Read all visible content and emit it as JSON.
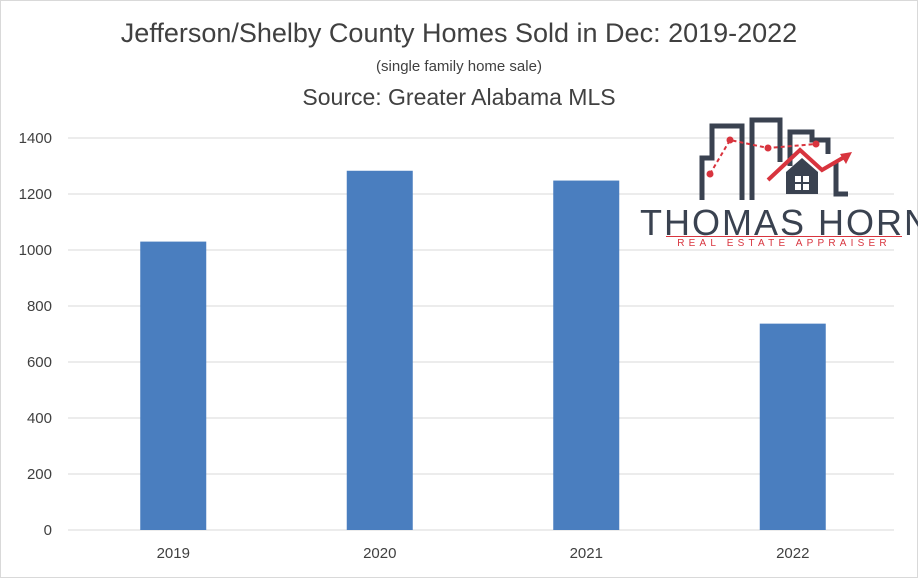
{
  "title": "Jefferson/Shelby County Homes Sold in Dec: 2019-2022",
  "subtitle": "(single family home sale)",
  "source": "Source: Greater Alabama MLS",
  "logo": {
    "name": "THOMAS HORN",
    "tagline": "REAL ESTATE APPRAISER",
    "colors": {
      "dark": "#3a4250",
      "accent": "#d8343e"
    }
  },
  "colors": {
    "bar": "#4a7ebf",
    "grid": "#d9d9d9",
    "text": "#404040"
  },
  "chart_data": {
    "type": "bar",
    "title": "Jefferson/Shelby County Homes Sold in Dec: 2019-2022",
    "xlabel": "",
    "ylabel": "",
    "categories": [
      "2019",
      "2020",
      "2021",
      "2022"
    ],
    "values": [
      1030,
      1283,
      1248,
      737
    ],
    "ylim": [
      0,
      1400
    ],
    "yticks": [
      0,
      200,
      400,
      600,
      800,
      1000,
      1200,
      1400
    ],
    "grid": true,
    "legend": "none"
  }
}
